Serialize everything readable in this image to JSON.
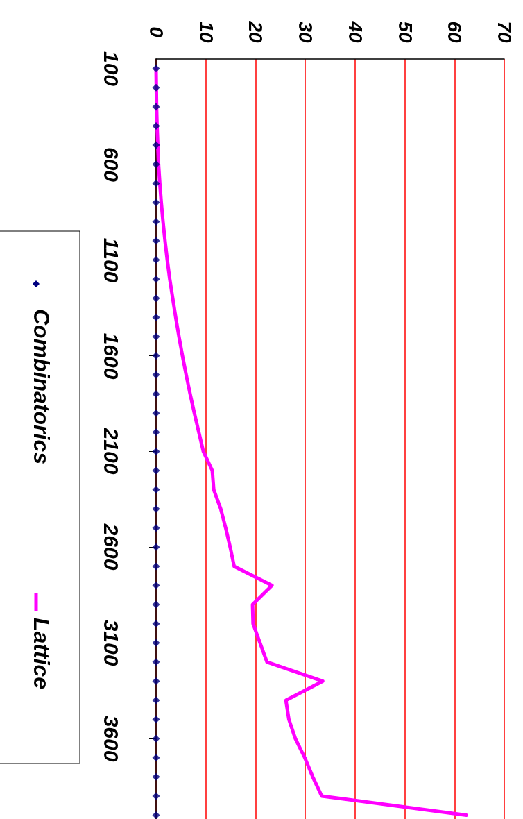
{
  "chart_data": {
    "type": "line",
    "series": [
      {
        "name": "Combinatorics",
        "type": "scatter",
        "marker": "diamond",
        "color": "#000080",
        "x": [
          0,
          0,
          0,
          0,
          0,
          0,
          0,
          0,
          0,
          0,
          0,
          0,
          0,
          0,
          0,
          0,
          0,
          0,
          0,
          0,
          0,
          0,
          0,
          0,
          0,
          0,
          0,
          0,
          0,
          0,
          0,
          0,
          0,
          0,
          0,
          0,
          0,
          0,
          0,
          0
        ],
        "values": [
          100,
          200,
          300,
          400,
          500,
          600,
          700,
          800,
          900,
          1000,
          1100,
          1200,
          1300,
          1400,
          1500,
          1600,
          1700,
          1800,
          1900,
          2000,
          2100,
          2200,
          2300,
          2400,
          2500,
          2600,
          2700,
          2800,
          2900,
          3000,
          3100,
          3200,
          3300,
          3400,
          3500,
          3600,
          3700,
          3800,
          3900,
          4000
        ]
      },
      {
        "name": "Lattice",
        "type": "line",
        "marker": "none",
        "color": "#ff00ff",
        "x": [
          0,
          0.05,
          0.1,
          0.2,
          0.35,
          0.5,
          0.75,
          1.05,
          1.4,
          1.8,
          2.25,
          2.75,
          3.35,
          3.95,
          4.6,
          5.3,
          6.05,
          6.85,
          7.7,
          8.6,
          9.5,
          11.3,
          11.6,
          13.0,
          14.0,
          14.9,
          15.7,
          23.3,
          19.4,
          19.5,
          20.9,
          22.3,
          33.5,
          26.1,
          26.7,
          28.0,
          29.9,
          31.5,
          33.3,
          62.4
        ],
        "values": [
          100,
          200,
          300,
          400,
          500,
          600,
          700,
          800,
          900,
          1000,
          1100,
          1200,
          1300,
          1400,
          1500,
          1600,
          1700,
          1800,
          1900,
          2000,
          2100,
          2200,
          2300,
          2400,
          2500,
          2600,
          2700,
          2800,
          2900,
          3000,
          3100,
          3200,
          3300,
          3400,
          3500,
          3600,
          3700,
          3800,
          3900,
          4000
        ]
      }
    ],
    "xlim": [
      0,
      70
    ],
    "xticks": [
      0,
      10,
      20,
      30,
      40,
      50,
      60,
      70
    ],
    "ylim": [
      4020,
      50
    ],
    "yticks": [
      100,
      600,
      1100,
      1600,
      2100,
      2600,
      3100,
      3600
    ],
    "grid": "x",
    "legend": "left"
  }
}
